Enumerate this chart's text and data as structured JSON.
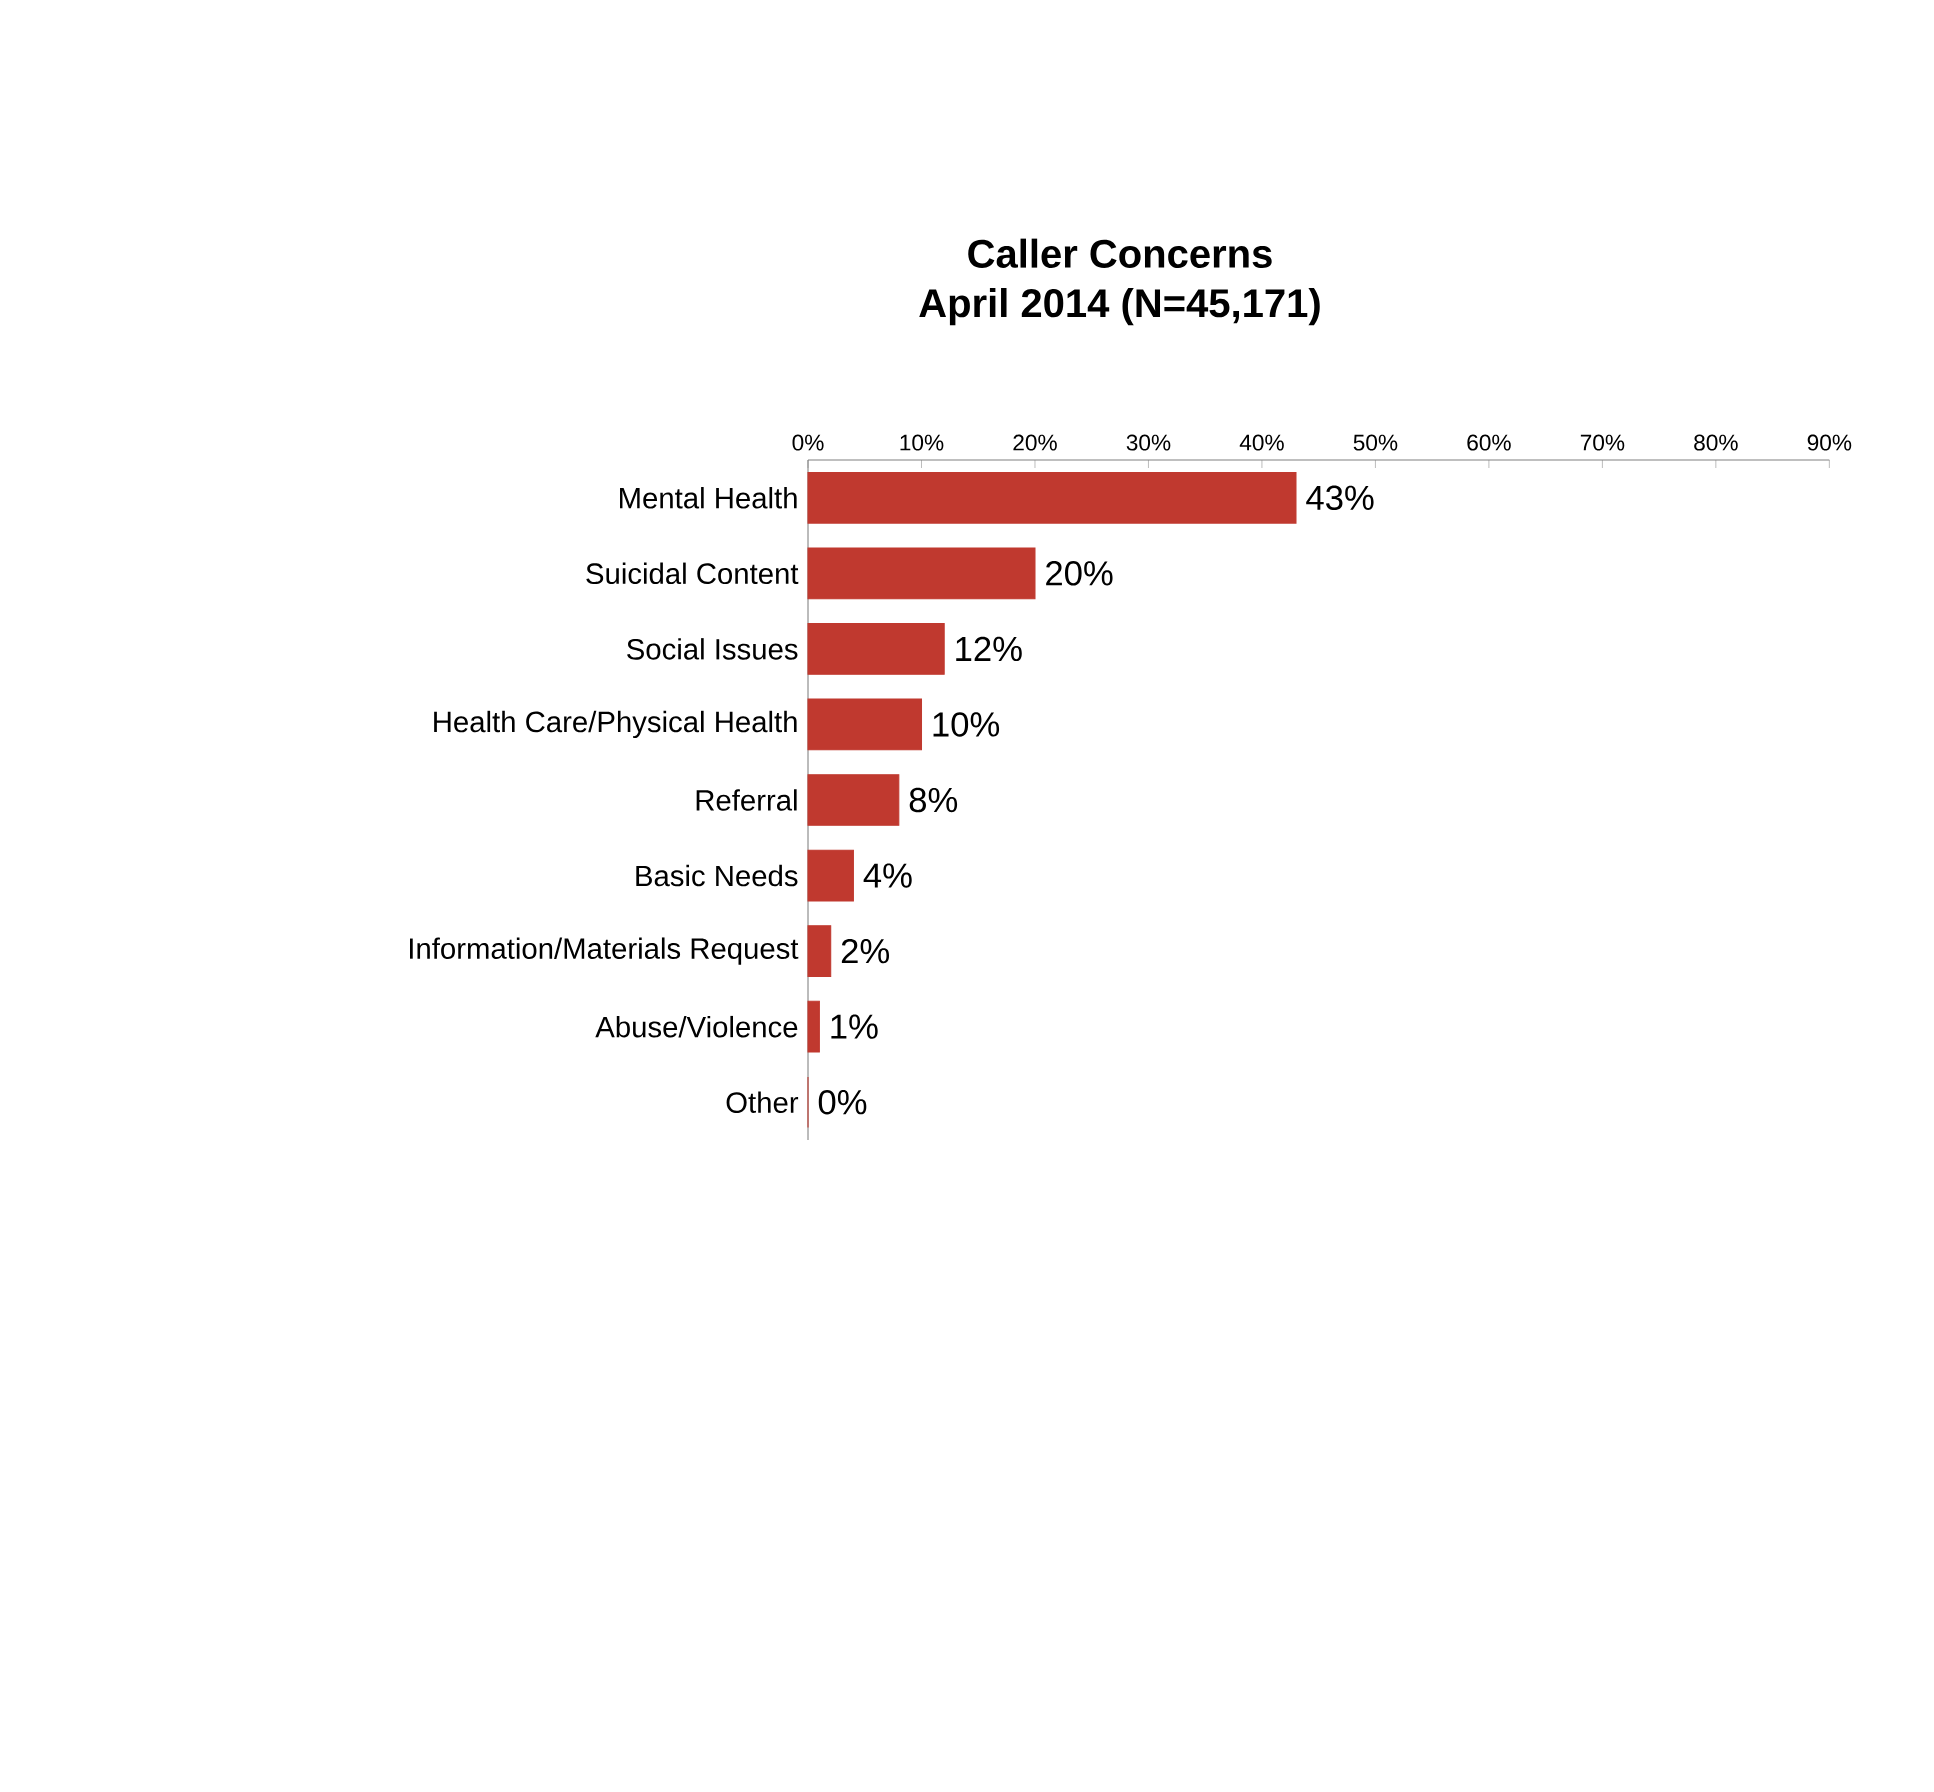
{
  "chart_data": {
    "type": "bar",
    "orientation": "horizontal",
    "title": "Caller Concerns",
    "subtitle": "April 2014 (N=45,171)",
    "categories": [
      "Mental Health",
      "Suicidal Content",
      "Social Issues",
      "Health Care/Physical Health",
      "Referral",
      "Basic Needs",
      "Information/Materials Request",
      "Abuse/Violence",
      "Other"
    ],
    "values": [
      43,
      20,
      12,
      10,
      8,
      4,
      2,
      1,
      0
    ],
    "value_labels": [
      "43%",
      "20%",
      "12%",
      "10%",
      "8%",
      "4%",
      "2%",
      "1%",
      "0%"
    ],
    "color": "#c0392f",
    "xlim": [
      0,
      90
    ],
    "xticks": [
      {
        "value": 0,
        "label": "0%"
      },
      {
        "value": 10,
        "label": "10%"
      },
      {
        "value": 20,
        "label": "20%"
      },
      {
        "value": 30,
        "label": "30%"
      },
      {
        "value": 40,
        "label": "40%"
      },
      {
        "value": 50,
        "label": "50%"
      },
      {
        "value": 60,
        "label": "60%"
      },
      {
        "value": 70,
        "label": "70%"
      },
      {
        "value": 80,
        "label": "80%"
      },
      {
        "value": 90,
        "label": "90%"
      }
    ]
  }
}
